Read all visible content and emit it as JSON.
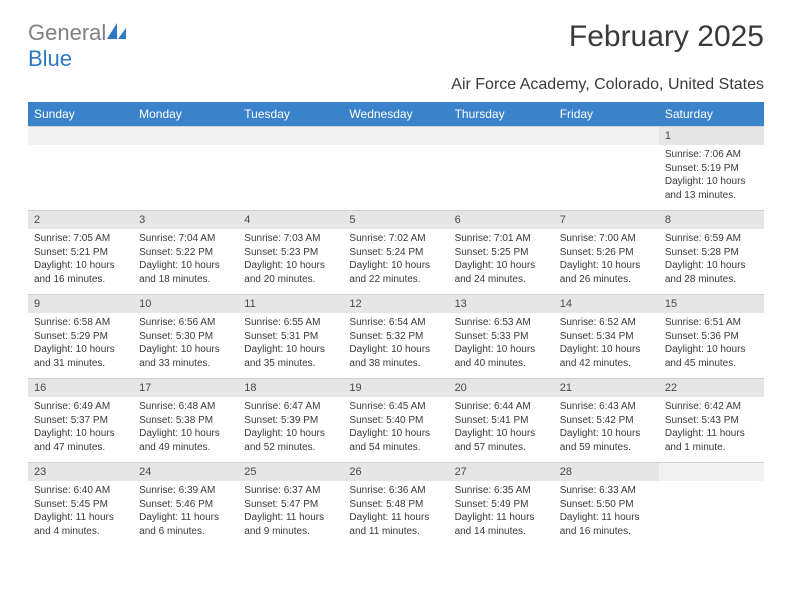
{
  "logo": {
    "grey": "General",
    "blue": "Blue"
  },
  "title": "February 2025",
  "subtitle": "Air Force Academy, Colorado, United States",
  "colors": {
    "header_bg": "#3a82c9",
    "header_text": "#ffffff",
    "numrow_bg": "#e6e6e6",
    "text": "#3a3a3a"
  },
  "daynames": [
    "Sunday",
    "Monday",
    "Tuesday",
    "Wednesday",
    "Thursday",
    "Friday",
    "Saturday"
  ],
  "weeks": [
    [
      null,
      null,
      null,
      null,
      null,
      null,
      {
        "n": "1",
        "sr": "7:06 AM",
        "ss": "5:19 PM",
        "dl": "10 hours and 13 minutes."
      }
    ],
    [
      {
        "n": "2",
        "sr": "7:05 AM",
        "ss": "5:21 PM",
        "dl": "10 hours and 16 minutes."
      },
      {
        "n": "3",
        "sr": "7:04 AM",
        "ss": "5:22 PM",
        "dl": "10 hours and 18 minutes."
      },
      {
        "n": "4",
        "sr": "7:03 AM",
        "ss": "5:23 PM",
        "dl": "10 hours and 20 minutes."
      },
      {
        "n": "5",
        "sr": "7:02 AM",
        "ss": "5:24 PM",
        "dl": "10 hours and 22 minutes."
      },
      {
        "n": "6",
        "sr": "7:01 AM",
        "ss": "5:25 PM",
        "dl": "10 hours and 24 minutes."
      },
      {
        "n": "7",
        "sr": "7:00 AM",
        "ss": "5:26 PM",
        "dl": "10 hours and 26 minutes."
      },
      {
        "n": "8",
        "sr": "6:59 AM",
        "ss": "5:28 PM",
        "dl": "10 hours and 28 minutes."
      }
    ],
    [
      {
        "n": "9",
        "sr": "6:58 AM",
        "ss": "5:29 PM",
        "dl": "10 hours and 31 minutes."
      },
      {
        "n": "10",
        "sr": "6:56 AM",
        "ss": "5:30 PM",
        "dl": "10 hours and 33 minutes."
      },
      {
        "n": "11",
        "sr": "6:55 AM",
        "ss": "5:31 PM",
        "dl": "10 hours and 35 minutes."
      },
      {
        "n": "12",
        "sr": "6:54 AM",
        "ss": "5:32 PM",
        "dl": "10 hours and 38 minutes."
      },
      {
        "n": "13",
        "sr": "6:53 AM",
        "ss": "5:33 PM",
        "dl": "10 hours and 40 minutes."
      },
      {
        "n": "14",
        "sr": "6:52 AM",
        "ss": "5:34 PM",
        "dl": "10 hours and 42 minutes."
      },
      {
        "n": "15",
        "sr": "6:51 AM",
        "ss": "5:36 PM",
        "dl": "10 hours and 45 minutes."
      }
    ],
    [
      {
        "n": "16",
        "sr": "6:49 AM",
        "ss": "5:37 PM",
        "dl": "10 hours and 47 minutes."
      },
      {
        "n": "17",
        "sr": "6:48 AM",
        "ss": "5:38 PM",
        "dl": "10 hours and 49 minutes."
      },
      {
        "n": "18",
        "sr": "6:47 AM",
        "ss": "5:39 PM",
        "dl": "10 hours and 52 minutes."
      },
      {
        "n": "19",
        "sr": "6:45 AM",
        "ss": "5:40 PM",
        "dl": "10 hours and 54 minutes."
      },
      {
        "n": "20",
        "sr": "6:44 AM",
        "ss": "5:41 PM",
        "dl": "10 hours and 57 minutes."
      },
      {
        "n": "21",
        "sr": "6:43 AM",
        "ss": "5:42 PM",
        "dl": "10 hours and 59 minutes."
      },
      {
        "n": "22",
        "sr": "6:42 AM",
        "ss": "5:43 PM",
        "dl": "11 hours and 1 minute."
      }
    ],
    [
      {
        "n": "23",
        "sr": "6:40 AM",
        "ss": "5:45 PM",
        "dl": "11 hours and 4 minutes."
      },
      {
        "n": "24",
        "sr": "6:39 AM",
        "ss": "5:46 PM",
        "dl": "11 hours and 6 minutes."
      },
      {
        "n": "25",
        "sr": "6:37 AM",
        "ss": "5:47 PM",
        "dl": "11 hours and 9 minutes."
      },
      {
        "n": "26",
        "sr": "6:36 AM",
        "ss": "5:48 PM",
        "dl": "11 hours and 11 minutes."
      },
      {
        "n": "27",
        "sr": "6:35 AM",
        "ss": "5:49 PM",
        "dl": "11 hours and 14 minutes."
      },
      {
        "n": "28",
        "sr": "6:33 AM",
        "ss": "5:50 PM",
        "dl": "11 hours and 16 minutes."
      },
      null
    ]
  ],
  "labels": {
    "sunrise": "Sunrise: ",
    "sunset": "Sunset: ",
    "daylight": "Daylight: "
  }
}
